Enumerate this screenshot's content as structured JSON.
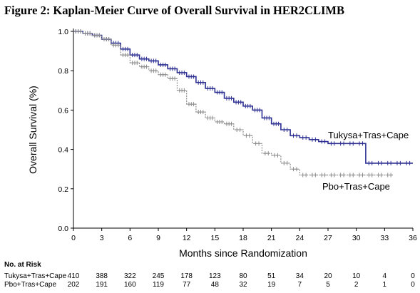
{
  "title": "Figure 2: Kaplan-Meier Curve of Overall Survival in HER2CLIMB",
  "chart_data": {
    "type": "line",
    "xlabel": "Months since Randomization",
    "ylabel": "Overall Survival  (%)",
    "xlim": [
      0,
      36
    ],
    "ylim": [
      0,
      1.0
    ],
    "x_ticks": [
      0,
      3,
      6,
      9,
      12,
      15,
      18,
      21,
      24,
      27,
      30,
      33,
      36
    ],
    "y_ticks": [
      "0.0",
      "0.2",
      "0.4",
      "0.6",
      "0.8",
      "1.0"
    ],
    "grid": false,
    "series": [
      {
        "name": "Tukysa+Tras+Cape",
        "color": "#2e3192",
        "style": "solid",
        "x": [
          0,
          1,
          2,
          3,
          4,
          5,
          6,
          7,
          8,
          9,
          10,
          11,
          12,
          13,
          14,
          15,
          16,
          17,
          18,
          19,
          20,
          21,
          22,
          23,
          24,
          25,
          26,
          27,
          28,
          29,
          30,
          31,
          32,
          33,
          34,
          35,
          36
        ],
        "y": [
          1.0,
          0.99,
          0.98,
          0.96,
          0.94,
          0.91,
          0.88,
          0.86,
          0.85,
          0.83,
          0.81,
          0.79,
          0.77,
          0.74,
          0.71,
          0.69,
          0.66,
          0.64,
          0.62,
          0.6,
          0.56,
          0.53,
          0.5,
          0.47,
          0.46,
          0.45,
          0.44,
          0.43,
          0.43,
          0.43,
          0.43,
          0.33,
          0.33,
          0.33,
          0.33,
          0.33,
          0.33
        ]
      },
      {
        "name": "Pbo+Tras+Cape",
        "color": "#8c8c8c",
        "style": "dotted",
        "x": [
          0,
          1,
          2,
          3,
          4,
          5,
          6,
          7,
          8,
          9,
          10,
          11,
          12,
          13,
          14,
          15,
          16,
          17,
          18,
          19,
          20,
          21,
          22,
          23,
          24,
          25,
          26,
          27,
          28,
          29,
          30,
          31,
          32,
          33,
          34
        ],
        "y": [
          1.0,
          0.99,
          0.98,
          0.96,
          0.93,
          0.88,
          0.84,
          0.82,
          0.8,
          0.78,
          0.76,
          0.7,
          0.63,
          0.59,
          0.56,
          0.54,
          0.53,
          0.5,
          0.47,
          0.43,
          0.38,
          0.37,
          0.33,
          0.3,
          0.27,
          0.27,
          0.27,
          0.27,
          0.27,
          0.27,
          0.27,
          0.27,
          0.27,
          0.27,
          0.27
        ]
      }
    ],
    "series_labels": [
      "Tukysa+Tras+Cape",
      "Pbo+Tras+Cape"
    ]
  },
  "risk_table": {
    "heading": "No. at Risk",
    "times": [
      0,
      3,
      6,
      9,
      12,
      15,
      18,
      21,
      24,
      27,
      30,
      33,
      36
    ],
    "rows": [
      {
        "label": "Tukysa+Tras+Cape",
        "counts": [
          "410",
          "388",
          "322",
          "245",
          "178",
          "123",
          "80",
          "51",
          "34",
          "20",
          "10",
          "4",
          "0"
        ]
      },
      {
        "label": "Pbo+Tras+Cape",
        "counts": [
          "202",
          "191",
          "160",
          "119",
          "77",
          "48",
          "32",
          "19",
          "7",
          "5",
          "2",
          "1",
          "0"
        ]
      }
    ]
  }
}
